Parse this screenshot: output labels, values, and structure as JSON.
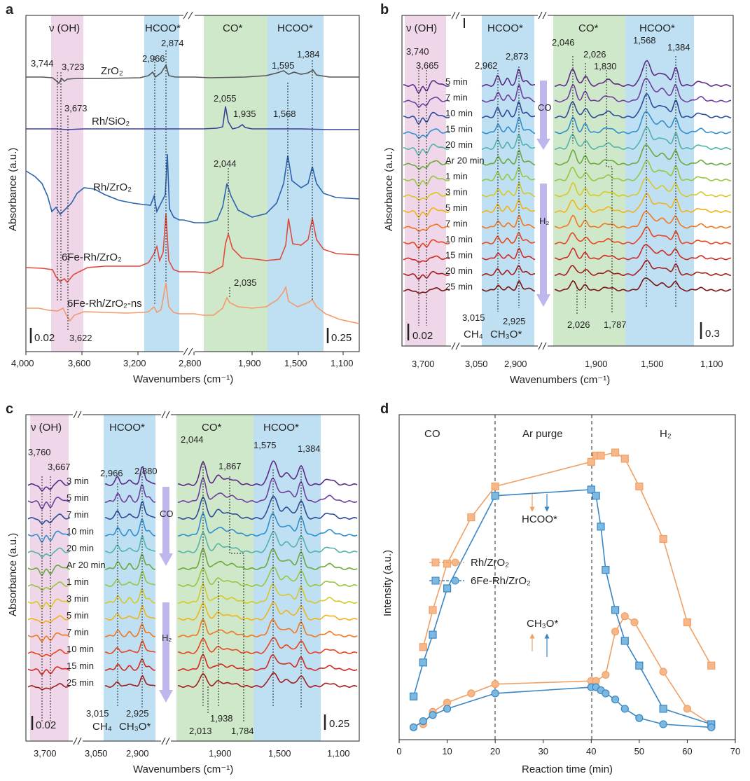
{
  "chart_data": [
    {
      "panel": "a",
      "type": "line",
      "xlabel": "Wavenumbers (cm⁻¹)",
      "ylabel": "Absorbance (a.u.)",
      "xticks": [
        "4,000",
        "3,600",
        "3,200",
        "2,800",
        "1,900",
        "1,500",
        "1,100"
      ],
      "bands": [
        "ν (OH)",
        "HCOO*",
        "CO*",
        "HCOO*"
      ],
      "series": [
        {
          "name": "ZrO₂",
          "color": "#555555"
        },
        {
          "name": "Rh/SiO₂",
          "color": "#3a3f99"
        },
        {
          "name": "Rh/ZrO₂",
          "color": "#2d63ad"
        },
        {
          "name": "6Fe-Rh/ZrO₂",
          "color": "#e04a3c"
        },
        {
          "name": "6Fe-Rh/ZrO₂-ns",
          "color": "#f39a6a"
        }
      ],
      "peak_labels": [
        "3,744",
        "3,723",
        "2,966",
        "2,874",
        "3,673",
        "1,595",
        "1,384",
        "2,055",
        "1,935",
        "1,568",
        "2,044",
        "2,035",
        "3,622"
      ],
      "scalebars": [
        "0.02",
        "0.25"
      ]
    },
    {
      "panel": "b",
      "type": "line",
      "xlabel": "Wavenumbers (cm⁻¹)",
      "ylabel": "Absorbance (a.u.)",
      "xticks": [
        "3,700",
        "3,050",
        "2,900",
        "1,900",
        "1,500",
        "1,100"
      ],
      "bands": [
        "ν (OH)",
        "HCOO*",
        "CO*",
        "HCOO*"
      ],
      "times": [
        "5 min",
        "7 min",
        "10 min",
        "15 min",
        "20 min",
        "Ar 20 min",
        "1 min",
        "3 min",
        "5 min",
        "7 min",
        "10 min",
        "15 min",
        "20 min",
        "25 min"
      ],
      "gas_arrows": [
        "CO",
        "H₂"
      ],
      "peak_labels": [
        "3,740",
        "3,665",
        "2,962",
        "2,873",
        "2,046",
        "2,026",
        "1,830",
        "1,568",
        "1,384",
        "3,015",
        "2,925",
        "2,026",
        "1,787"
      ],
      "bottom_labels": [
        "CH₄",
        "CH₃O*"
      ],
      "scalebars": [
        "0.02",
        "0.3"
      ]
    },
    {
      "panel": "c",
      "type": "line",
      "xlabel": "Wavenumbers (cm⁻¹)",
      "ylabel": "Absorbance (a.u.)",
      "xticks": [
        "3,700",
        "3,050",
        "2,900",
        "1,900",
        "1,500",
        "1,100"
      ],
      "bands": [
        "ν (OH)",
        "HCOO*",
        "CO*",
        "HCOO*"
      ],
      "times": [
        "3 min",
        "5 min",
        "7 min",
        "10 min",
        "20 min",
        "Ar 20 min",
        "1 min",
        "3 min",
        "5 min",
        "7 min",
        "10 min",
        "15 min",
        "25 min"
      ],
      "gas_arrows": [
        "CO",
        "H₂"
      ],
      "peak_labels": [
        "3,760",
        "3,667",
        "2,966",
        "2,880",
        "2,044",
        "1,867",
        "1,575",
        "1,384",
        "3,015",
        "2,925",
        "1,938",
        "2,013",
        "1,784"
      ],
      "bottom_labels": [
        "CH₄",
        "CH₃O*"
      ],
      "scalebars": [
        "0.02",
        "0.25"
      ]
    },
    {
      "panel": "d",
      "type": "line",
      "xlabel": "Reaction time (min)",
      "ylabel": "Intensity (a.u.)",
      "xlim": [
        0,
        70
      ],
      "ylim": [
        0,
        100
      ],
      "xticks": [
        0,
        10,
        20,
        30,
        40,
        50,
        60,
        70
      ],
      "regions": [
        "CO",
        "Ar purge",
        "H₂"
      ],
      "region_bounds": [
        20,
        40
      ],
      "annotations": [
        "HCOO*",
        "CH₃O*"
      ],
      "legend": [
        "Rh/ZrO₂",
        "6Fe-Rh/ZrO₂"
      ],
      "series": [
        {
          "name": "Rh/ZrO₂ HCOO*",
          "marker": "square",
          "color": "#f0a064",
          "x": [
            5,
            7,
            10,
            15,
            20,
            40,
            41,
            42,
            45,
            47,
            50,
            55,
            60,
            65
          ],
          "y": [
            30,
            42,
            57,
            72,
            82,
            90,
            92,
            92,
            93,
            91,
            82,
            65,
            38,
            24
          ]
        },
        {
          "name": "Rh/ZrO₂ CH₃O*",
          "marker": "circle",
          "color": "#f0a064",
          "x": [
            5,
            7,
            10,
            15,
            20,
            40,
            41,
            43,
            45,
            47,
            49,
            55,
            60,
            65
          ],
          "y": [
            5,
            9,
            12,
            15,
            18,
            19,
            19,
            21,
            35,
            40,
            38,
            22,
            10,
            5
          ]
        },
        {
          "name": "6Fe-Rh/ZrO₂ HCOO*",
          "marker": "square",
          "color": "#3a86c4",
          "x": [
            3,
            5,
            7,
            10,
            20,
            40,
            41,
            42,
            43,
            45,
            47,
            50,
            55,
            65
          ],
          "y": [
            14,
            25,
            34,
            49,
            79,
            81,
            79,
            69,
            55,
            42,
            32,
            24,
            10,
            5
          ]
        },
        {
          "name": "6Fe-Rh/ZrO₂ CH₃O*",
          "marker": "circle",
          "color": "#3a86c4",
          "x": [
            3,
            5,
            7,
            10,
            20,
            40,
            41,
            42,
            43,
            45,
            47,
            50,
            55,
            65
          ],
          "y": [
            4,
            6,
            8,
            10,
            15,
            17,
            17,
            16,
            15,
            13,
            10,
            7,
            5,
            4
          ]
        }
      ]
    }
  ]
}
